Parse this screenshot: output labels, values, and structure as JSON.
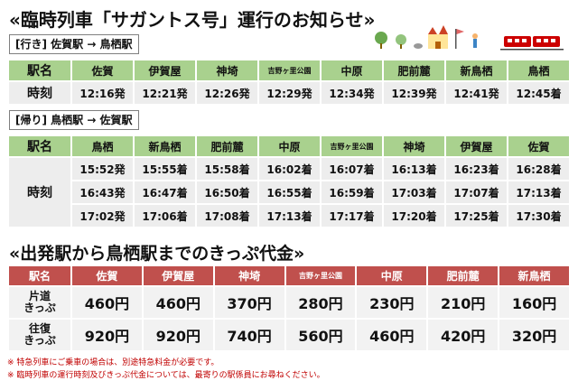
{
  "title": "«臨時列車「サガントス号」運行のお知らせ»",
  "outbound": {
    "route_label": "[行き] 佐賀駅 → 鳥栖駅",
    "station_header": "駅名",
    "time_header": "時刻",
    "stations": [
      "佐賀",
      "伊賀屋",
      "神埼",
      "吉野ヶ里公園",
      "中原",
      "肥前麓",
      "新鳥栖",
      "鳥栖"
    ],
    "times": [
      "12:16発",
      "12:21発",
      "12:26発",
      "12:29発",
      "12:34発",
      "12:39発",
      "12:41発",
      "12:45着"
    ]
  },
  "inbound": {
    "route_label": "[帰り] 鳥栖駅 → 佐賀駅",
    "station_header": "駅名",
    "time_header": "時刻",
    "stations": [
      "鳥栖",
      "新鳥栖",
      "肥前麓",
      "中原",
      "吉野ヶ里公園",
      "神埼",
      "伊賀屋",
      "佐賀"
    ],
    "trips": [
      [
        "15:52発",
        "15:55着",
        "15:58着",
        "16:02着",
        "16:07着",
        "16:13着",
        "16:23着",
        "16:28着"
      ],
      [
        "16:43発",
        "16:47着",
        "16:50着",
        "16:55着",
        "16:59着",
        "17:03着",
        "17:07着",
        "17:13着"
      ],
      [
        "17:02発",
        "17:06着",
        "17:08着",
        "17:13着",
        "17:17着",
        "17:20着",
        "17:25着",
        "17:30着"
      ]
    ]
  },
  "fares": {
    "heading": "«出発駅から鳥栖駅までのきっぷ代金»",
    "station_header": "駅名",
    "stations": [
      "佐賀",
      "伊賀屋",
      "神埼",
      "吉野ヶ里公園",
      "中原",
      "肥前麓",
      "新鳥栖"
    ],
    "one_way_label": [
      "片道",
      "きっぷ"
    ],
    "one_way": [
      "460円",
      "460円",
      "370円",
      "280円",
      "230円",
      "210円",
      "160円"
    ],
    "round_trip_label": [
      "往復",
      "きっぷ"
    ],
    "round_trip": [
      "920円",
      "920円",
      "740円",
      "560円",
      "460円",
      "420円",
      "320円"
    ]
  },
  "notes": [
    "※ 特急列車にご乗車の場合は、別途特急料金が必要です。",
    "※ 臨時列車の運行時刻及びきっぷ代金については、最寄りの駅係員にお尋ねください。"
  ],
  "decoration": {
    "icons": [
      "tree-icon",
      "castle-icon",
      "flag-icon",
      "train-icon"
    ]
  }
}
